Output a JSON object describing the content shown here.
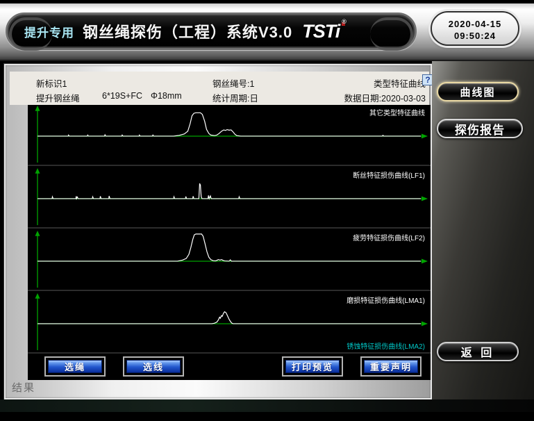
{
  "titlebar": {
    "badge": "提升专用",
    "title": "钢丝绳探伤（工程）系统V3.0",
    "logo": "TSTi",
    "logo_reg": "®",
    "date": "2020-04-15",
    "time": "09:50:24"
  },
  "help_icon": "?",
  "info_header": {
    "rope_id": "新标识1",
    "rope_no": "钢丝绳号:1",
    "curve_type": "类型特征曲线",
    "rope_use": "提升钢丝绳",
    "rope_structure": "6*19S+FC",
    "rope_diameter": "Φ18mm",
    "stat_period": "统计周期:日",
    "data_date": "数据日期:2020-03-03"
  },
  "chart_data": [
    {
      "type": "line",
      "label": "其它类型特征曲线",
      "label_color": "#ffffff",
      "axis_color": "#00a300",
      "trace_color": "#ffffff",
      "x_range": [
        0,
        1
      ],
      "y_range": [
        0,
        1
      ],
      "points": [
        [
          0,
          0
        ],
        [
          0.08,
          0
        ],
        [
          0.081,
          0.04
        ],
        [
          0.083,
          0
        ],
        [
          0.13,
          0
        ],
        [
          0.131,
          0.04
        ],
        [
          0.133,
          0
        ],
        [
          0.175,
          0
        ],
        [
          0.176,
          0.05
        ],
        [
          0.178,
          0
        ],
        [
          0.22,
          0
        ],
        [
          0.221,
          0.04
        ],
        [
          0.223,
          0
        ],
        [
          0.265,
          0
        ],
        [
          0.266,
          0.04
        ],
        [
          0.268,
          0
        ],
        [
          0.3,
          0
        ],
        [
          0.301,
          0.04
        ],
        [
          0.303,
          0
        ],
        [
          0.355,
          0
        ],
        [
          0.37,
          0.03
        ],
        [
          0.383,
          0.08
        ],
        [
          0.392,
          0.18
        ],
        [
          0.398,
          0.45
        ],
        [
          0.403,
          0.75
        ],
        [
          0.408,
          0.84
        ],
        [
          0.413,
          0.86
        ],
        [
          0.425,
          0.86
        ],
        [
          0.43,
          0.8
        ],
        [
          0.436,
          0.55
        ],
        [
          0.441,
          0.25
        ],
        [
          0.447,
          0.1
        ],
        [
          0.452,
          0.04
        ],
        [
          0.462,
          0.02
        ],
        [
          0.468,
          0.04
        ],
        [
          0.474,
          0.1
        ],
        [
          0.48,
          0.18
        ],
        [
          0.486,
          0.23
        ],
        [
          0.49,
          0.21
        ],
        [
          0.495,
          0.24
        ],
        [
          0.5,
          0.22
        ],
        [
          0.505,
          0.23
        ],
        [
          0.51,
          0.16
        ],
        [
          0.515,
          0.07
        ],
        [
          0.52,
          0.02
        ],
        [
          0.53,
          0
        ],
        [
          0.9,
          0
        ],
        [
          0.901,
          0.03
        ],
        [
          0.903,
          0
        ],
        [
          1,
          0
        ]
      ]
    },
    {
      "type": "line",
      "label": "断丝特征损伤曲线(LF1)",
      "label_color": "#ffffff",
      "axis_color": "#00a300",
      "trace_color": "#ffffff",
      "x_range": [
        0,
        1
      ],
      "y_range": [
        0,
        1
      ],
      "points": [
        [
          0,
          0
        ],
        [
          0.038,
          0
        ],
        [
          0.039,
          0.07
        ],
        [
          0.041,
          0
        ],
        [
          0.1,
          0
        ],
        [
          0.101,
          0.09
        ],
        [
          0.102,
          0
        ],
        [
          0.104,
          0.06
        ],
        [
          0.106,
          0
        ],
        [
          0.143,
          0
        ],
        [
          0.144,
          0.07
        ],
        [
          0.146,
          0
        ],
        [
          0.163,
          0
        ],
        [
          0.164,
          0.09
        ],
        [
          0.166,
          0
        ],
        [
          0.186,
          0
        ],
        [
          0.187,
          0.1
        ],
        [
          0.189,
          0
        ],
        [
          0.355,
          0
        ],
        [
          0.356,
          0.07
        ],
        [
          0.358,
          0
        ],
        [
          0.386,
          0
        ],
        [
          0.387,
          0.08
        ],
        [
          0.389,
          0
        ],
        [
          0.405,
          0
        ],
        [
          0.406,
          0.09
        ],
        [
          0.408,
          0
        ],
        [
          0.421,
          0
        ],
        [
          0.423,
          0.56
        ],
        [
          0.425,
          0.5
        ],
        [
          0.427,
          0.08
        ],
        [
          0.429,
          0
        ],
        [
          0.445,
          0
        ],
        [
          0.446,
          0.12
        ],
        [
          0.448,
          0
        ],
        [
          0.451,
          0.1
        ],
        [
          0.453,
          0
        ],
        [
          0.525,
          0
        ],
        [
          0.526,
          0.07
        ],
        [
          0.528,
          0
        ],
        [
          1,
          0
        ]
      ]
    },
    {
      "type": "line",
      "label": "疲劳特征损伤曲线(LF2)",
      "label_color": "#ffffff",
      "axis_color": "#00a300",
      "trace_color": "#ffffff",
      "x_range": [
        0,
        1
      ],
      "y_range": [
        0,
        1
      ],
      "points": [
        [
          0,
          0
        ],
        [
          0.365,
          0
        ],
        [
          0.378,
          0.04
        ],
        [
          0.388,
          0.1
        ],
        [
          0.395,
          0.25
        ],
        [
          0.4,
          0.5
        ],
        [
          0.405,
          0.8
        ],
        [
          0.409,
          0.97
        ],
        [
          0.413,
          1
        ],
        [
          0.428,
          1
        ],
        [
          0.432,
          0.92
        ],
        [
          0.437,
          0.65
        ],
        [
          0.442,
          0.35
        ],
        [
          0.447,
          0.15
        ],
        [
          0.452,
          0.06
        ],
        [
          0.458,
          0.02
        ],
        [
          0.464,
          0.01
        ],
        [
          0.468,
          0.03
        ],
        [
          0.472,
          0.06
        ],
        [
          0.476,
          0.04
        ],
        [
          0.48,
          0.06
        ],
        [
          0.484,
          0.03
        ],
        [
          0.488,
          0.01
        ],
        [
          0.5,
          0
        ],
        [
          0.503,
          0.05
        ],
        [
          0.506,
          0
        ],
        [
          1,
          0
        ]
      ]
    },
    {
      "type": "line",
      "label": "磨损特征损伤曲线(LMA1)",
      "label_color": "#ffffff",
      "label2": "锈蚀特征损伤曲线(LMA2)",
      "label2_color": "#00c8c8",
      "axis_color": "#00a300",
      "trace_color": "#ffffff",
      "x_range": [
        0,
        1
      ],
      "y_range": [
        0,
        1
      ],
      "points": [
        [
          0,
          0
        ],
        [
          0.455,
          0
        ],
        [
          0.462,
          0.02
        ],
        [
          0.468,
          0.06
        ],
        [
          0.472,
          0.14
        ],
        [
          0.475,
          0.24
        ],
        [
          0.477,
          0.2
        ],
        [
          0.48,
          0.3
        ],
        [
          0.482,
          0.27
        ],
        [
          0.485,
          0.38
        ],
        [
          0.488,
          0.44
        ],
        [
          0.492,
          0.4
        ],
        [
          0.496,
          0.28
        ],
        [
          0.5,
          0.16
        ],
        [
          0.504,
          0.07
        ],
        [
          0.507,
          0.02
        ],
        [
          0.51,
          0
        ],
        [
          1,
          0
        ]
      ]
    }
  ],
  "bottom_buttons": {
    "select_rope": "选绳",
    "select_line": "选线",
    "print_preview": "打印预览",
    "important_notice": "重要声明"
  },
  "sidebar": {
    "curve_chart": "曲线图",
    "report": "探伤报告",
    "back": "返 回"
  },
  "status": {
    "result_label": "结果"
  },
  "colors": {
    "axis_green": "#00a300",
    "trace_white": "#ffffff",
    "lma2_cyan": "#00c8c8",
    "badge_cyan": "#a9e6f3",
    "button_blue": "#2256cc",
    "gold_border": "#ead9a4"
  }
}
